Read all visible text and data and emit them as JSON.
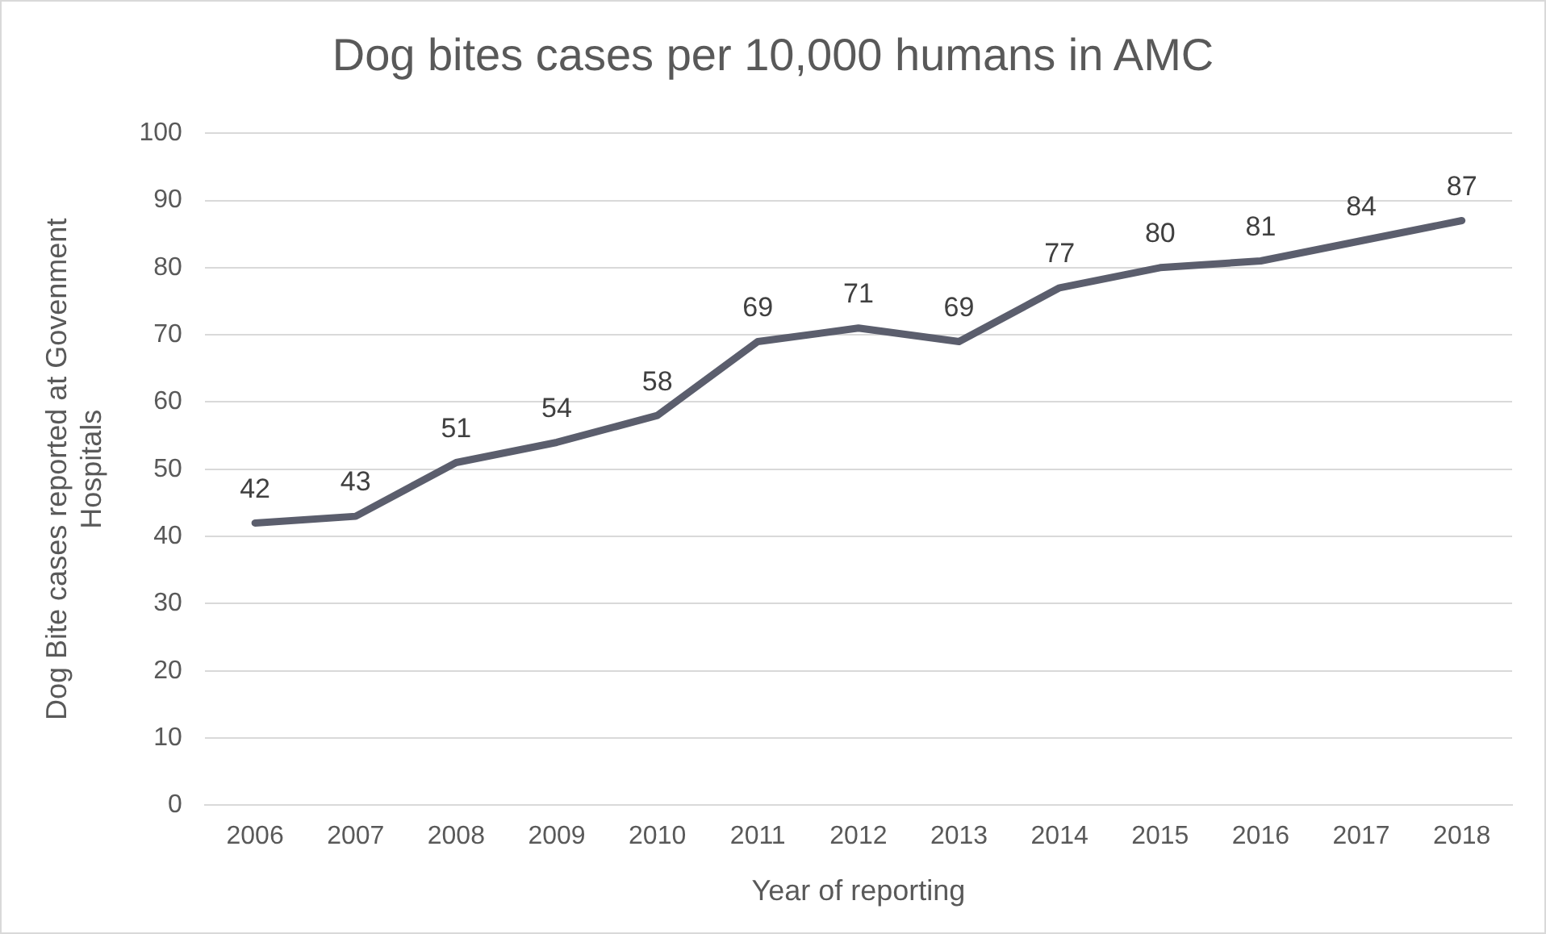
{
  "chart_data": {
    "type": "line",
    "title": "Dog bites cases per 10,000 humans in AMC",
    "xlabel": "Year of reporting",
    "ylabel": "Dog Bite cases reported at Govenment Hospitals",
    "categories": [
      "2006",
      "2007",
      "2008",
      "2009",
      "2010",
      "2011",
      "2012",
      "2013",
      "2014",
      "2015",
      "2016",
      "2017",
      "2018"
    ],
    "series": [
      {
        "color": "#5b5e6d",
        "values": [
          42,
          43,
          51,
          54,
          58,
          69,
          71,
          69,
          77,
          80,
          81,
          84,
          87
        ]
      }
    ],
    "ylim": [
      0,
      100
    ],
    "yticks": [
      0,
      10,
      20,
      30,
      40,
      50,
      60,
      70,
      80,
      90,
      100
    ],
    "grid": "y",
    "legend": false,
    "marker": "none",
    "line_style": "solid",
    "data_labels": true
  }
}
